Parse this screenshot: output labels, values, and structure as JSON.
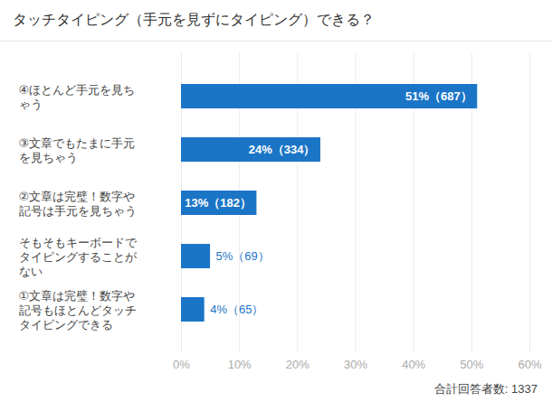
{
  "chart_data": {
    "type": "bar",
    "orientation": "horizontal",
    "title": "タッチタイピング（手元を見ずにタイピング）できる？",
    "categories": [
      "④ほとんど手元を見ちゃう",
      "③文章でもたまに手元を見ちゃう",
      "②文章は完璧！数字や記号は手元を見ちゃう",
      "そもそもキーボードでタイピングすることがない",
      "①文章は完璧！数字や記号もほとんどタッチタイピングできる"
    ],
    "values": [
      51,
      24,
      13,
      5,
      4
    ],
    "value_labels": [
      "51%（687）",
      "24%（334）",
      "13%（182）",
      "5%（69）",
      "4%（65）"
    ],
    "color": "#1b75c7",
    "xlim": [
      0,
      60
    ],
    "xticks": [
      {
        "value": 0,
        "label": "0%"
      },
      {
        "value": 10,
        "label": "10%"
      },
      {
        "value": 20,
        "label": "20%"
      },
      {
        "value": 30,
        "label": "30%"
      },
      {
        "value": 40,
        "label": "40%"
      },
      {
        "value": 50,
        "label": "50%"
      },
      {
        "value": 60,
        "label": "60%"
      }
    ],
    "grid": true,
    "data_labels": true,
    "caption": "合計回答者数: 1337"
  }
}
